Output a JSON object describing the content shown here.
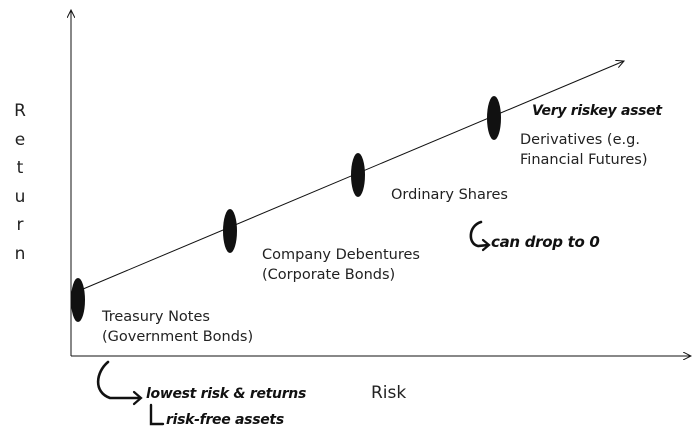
{
  "axes": {
    "y_label": "Return",
    "x_label": "Risk"
  },
  "assets": [
    {
      "line1": "Treasury Notes",
      "line2": "(Government Bonds)"
    },
    {
      "line1": "Company Debentures",
      "line2": "(Corporate Bonds)"
    },
    {
      "line1": "Ordinary Shares",
      "line2": ""
    },
    {
      "line1": "Derivatives (e.g.",
      "line2": "Financial Futures)"
    }
  ],
  "annotations": {
    "derivatives": "Very riskey asset",
    "shares": "can drop to 0",
    "treasury_line1": "lowest risk & returns",
    "treasury_line2": "risk-free assets"
  },
  "colors": {
    "ink": "#111111",
    "text": "#222222"
  }
}
